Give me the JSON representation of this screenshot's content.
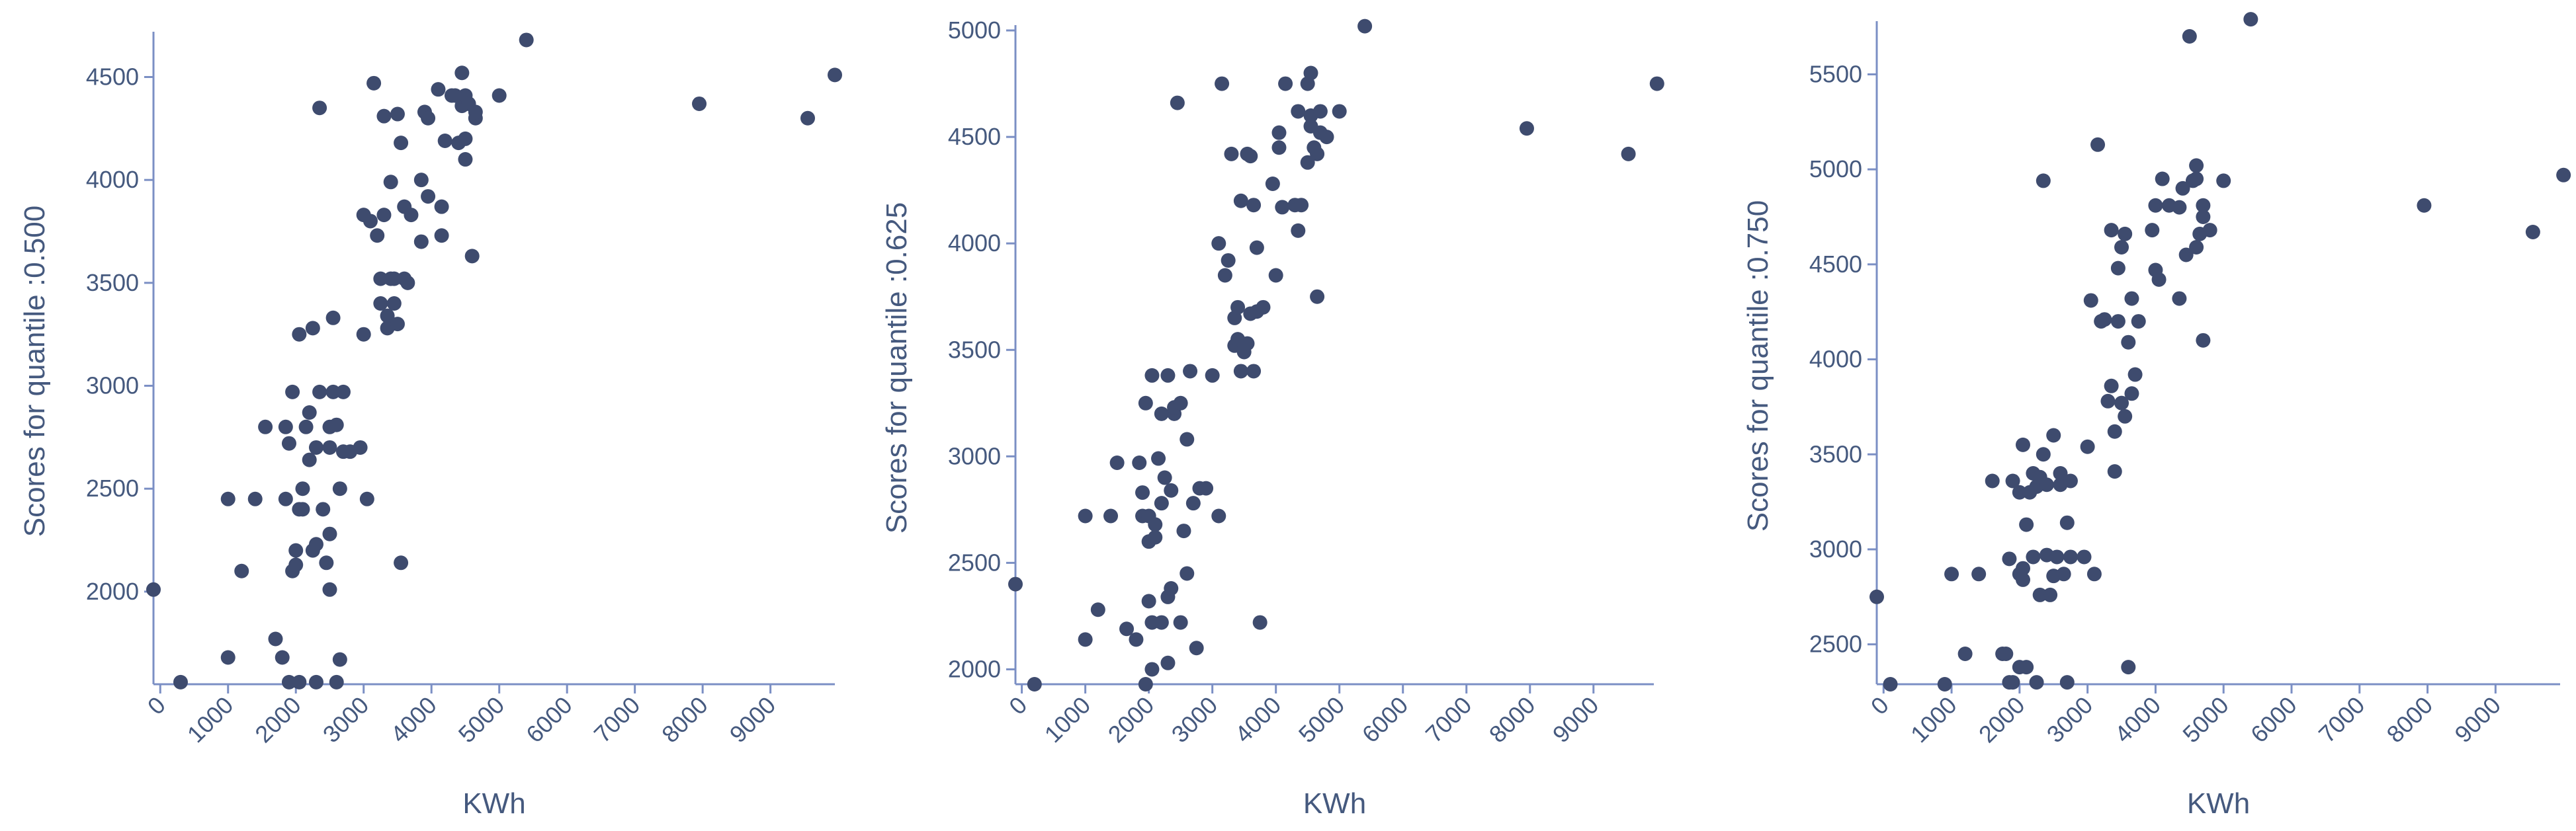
{
  "chart_data": [
    {
      "type": "scatter",
      "xlabel": "KWh",
      "ylabel": "Scores for quantile :0.500",
      "xlim": [
        -100,
        9950
      ],
      "ylim": [
        1550,
        4720
      ],
      "xticks": [
        0,
        1000,
        2000,
        3000,
        4000,
        5000,
        6000,
        7000,
        8000,
        9000
      ],
      "yticks": [
        2000,
        2500,
        3000,
        3500,
        4000,
        4500
      ],
      "points": [
        [
          -100,
          2010
        ],
        [
          300,
          1560
        ],
        [
          1000,
          1680
        ],
        [
          1000,
          2450
        ],
        [
          1200,
          2100
        ],
        [
          1400,
          2450
        ],
        [
          1550,
          2800
        ],
        [
          1700,
          1770
        ],
        [
          1800,
          1680
        ],
        [
          1850,
          2450
        ],
        [
          1850,
          2800
        ],
        [
          1900,
          2720
        ],
        [
          1900,
          1560
        ],
        [
          1950,
          2100
        ],
        [
          1950,
          2970
        ],
        [
          2000,
          2130
        ],
        [
          2000,
          2200
        ],
        [
          2050,
          2400
        ],
        [
          2050,
          1560
        ],
        [
          2050,
          3250
        ],
        [
          2100,
          2400
        ],
        [
          2100,
          2500
        ],
        [
          2150,
          2800
        ],
        [
          2200,
          2640
        ],
        [
          2200,
          2870
        ],
        [
          2250,
          3280
        ],
        [
          2250,
          2200
        ],
        [
          2300,
          2230
        ],
        [
          2300,
          1560
        ],
        [
          2300,
          2700
        ],
        [
          2350,
          2970
        ],
        [
          2350,
          4350
        ],
        [
          2400,
          2400
        ],
        [
          2450,
          2140
        ],
        [
          2500,
          2700
        ],
        [
          2500,
          2800
        ],
        [
          2500,
          2280
        ],
        [
          2500,
          2010
        ],
        [
          2550,
          2970
        ],
        [
          2550,
          3330
        ],
        [
          2600,
          2810
        ],
        [
          2600,
          1560
        ],
        [
          2650,
          1670
        ],
        [
          2650,
          2500
        ],
        [
          2700,
          2970
        ],
        [
          2700,
          2680
        ],
        [
          2800,
          2680
        ],
        [
          2950,
          2700
        ],
        [
          3000,
          3250
        ],
        [
          3000,
          3830
        ],
        [
          3050,
          2450
        ],
        [
          3100,
          3800
        ],
        [
          3150,
          4470
        ],
        [
          3200,
          3730
        ],
        [
          3250,
          3400
        ],
        [
          3250,
          3520
        ],
        [
          3300,
          4310
        ],
        [
          3300,
          3830
        ],
        [
          3350,
          3280
        ],
        [
          3350,
          3340
        ],
        [
          3400,
          3520
        ],
        [
          3400,
          3990
        ],
        [
          3450,
          3400
        ],
        [
          3450,
          3520
        ],
        [
          3500,
          3300
        ],
        [
          3500,
          4320
        ],
        [
          3550,
          4180
        ],
        [
          3550,
          2140
        ],
        [
          3600,
          3520
        ],
        [
          3600,
          3870
        ],
        [
          3650,
          3500
        ],
        [
          3700,
          3830
        ],
        [
          3850,
          3700
        ],
        [
          3850,
          4000
        ],
        [
          3900,
          4330
        ],
        [
          3950,
          4300
        ],
        [
          3950,
          3920
        ],
        [
          4100,
          4440
        ],
        [
          4150,
          3730
        ],
        [
          4150,
          3870
        ],
        [
          4200,
          4190
        ],
        [
          4300,
          4410
        ],
        [
          4350,
          4410
        ],
        [
          4400,
          4180
        ],
        [
          4450,
          4520
        ],
        [
          4450,
          4360
        ],
        [
          4500,
          4100
        ],
        [
          4500,
          4200
        ],
        [
          4500,
          4410
        ],
        [
          4550,
          4370
        ],
        [
          4600,
          3630
        ],
        [
          4650,
          4300
        ],
        [
          4650,
          4330
        ],
        [
          5000,
          4410
        ],
        [
          5400,
          4680
        ],
        [
          7950,
          4370
        ],
        [
          9550,
          4300
        ],
        [
          9950,
          4510
        ]
      ]
    },
    {
      "type": "scatter",
      "xlabel": "KWh",
      "ylabel": "Scores for quantile :0.625",
      "xlim": [
        -100,
        9950
      ],
      "ylim": [
        1930,
        5025
      ],
      "xticks": [
        0,
        1000,
        2000,
        3000,
        4000,
        5000,
        6000,
        7000,
        8000,
        9000
      ],
      "yticks": [
        2000,
        2500,
        3000,
        3500,
        4000,
        4500,
        5000
      ],
      "points": [
        [
          -100,
          2400
        ],
        [
          200,
          1930
        ],
        [
          1000,
          2140
        ],
        [
          1000,
          2720
        ],
        [
          1200,
          2280
        ],
        [
          1400,
          2720
        ],
        [
          1500,
          2970
        ],
        [
          1650,
          2190
        ],
        [
          1800,
          2140
        ],
        [
          1850,
          2970
        ],
        [
          1900,
          2830
        ],
        [
          1900,
          2720
        ],
        [
          1950,
          1930
        ],
        [
          1950,
          3250
        ],
        [
          2000,
          2600
        ],
        [
          2000,
          2720
        ],
        [
          2000,
          2320
        ],
        [
          2050,
          2000
        ],
        [
          2050,
          2220
        ],
        [
          2050,
          3380
        ],
        [
          2100,
          2680
        ],
        [
          2100,
          2620
        ],
        [
          2150,
          2990
        ],
        [
          2200,
          2780
        ],
        [
          2200,
          2220
        ],
        [
          2200,
          3200
        ],
        [
          2250,
          2900
        ],
        [
          2300,
          2340
        ],
        [
          2300,
          3380
        ],
        [
          2300,
          2030
        ],
        [
          2350,
          2380
        ],
        [
          2350,
          2840
        ],
        [
          2400,
          3200
        ],
        [
          2400,
          3230
        ],
        [
          2450,
          4660
        ],
        [
          2500,
          2220
        ],
        [
          2500,
          3250
        ],
        [
          2550,
          2650
        ],
        [
          2600,
          2450
        ],
        [
          2600,
          3080
        ],
        [
          2650,
          3400
        ],
        [
          2700,
          2780
        ],
        [
          2750,
          2100
        ],
        [
          2800,
          2850
        ],
        [
          2900,
          2850
        ],
        [
          3000,
          3380
        ],
        [
          3100,
          2720
        ],
        [
          3100,
          4000
        ],
        [
          3150,
          4750
        ],
        [
          3200,
          3850
        ],
        [
          3250,
          3920
        ],
        [
          3300,
          4420
        ],
        [
          3350,
          3650
        ],
        [
          3350,
          3520
        ],
        [
          3400,
          3550
        ],
        [
          3400,
          3700
        ],
        [
          3450,
          4200
        ],
        [
          3450,
          3400
        ],
        [
          3500,
          3490
        ],
        [
          3550,
          4420
        ],
        [
          3550,
          3530
        ],
        [
          3600,
          4410
        ],
        [
          3600,
          3670
        ],
        [
          3650,
          3400
        ],
        [
          3650,
          4180
        ],
        [
          3700,
          3680
        ],
        [
          3700,
          3980
        ],
        [
          3750,
          2220
        ],
        [
          3800,
          3700
        ],
        [
          3950,
          4280
        ],
        [
          4000,
          3850
        ],
        [
          4050,
          4450
        ],
        [
          4050,
          4520
        ],
        [
          4100,
          4170
        ],
        [
          4150,
          4750
        ],
        [
          4300,
          4180
        ],
        [
          4350,
          4060
        ],
        [
          4350,
          4620
        ],
        [
          4400,
          4180
        ],
        [
          4500,
          4380
        ],
        [
          4500,
          4750
        ],
        [
          4550,
          4800
        ],
        [
          4550,
          4550
        ],
        [
          4550,
          4600
        ],
        [
          4600,
          4450
        ],
        [
          4650,
          4420
        ],
        [
          4650,
          3750
        ],
        [
          4700,
          4520
        ],
        [
          4700,
          4620
        ],
        [
          4800,
          4500
        ],
        [
          5000,
          4620
        ],
        [
          5400,
          5020
        ],
        [
          7950,
          4540
        ],
        [
          9550,
          4420
        ],
        [
          10000,
          4750
        ]
      ]
    },
    {
      "type": "scatter",
      "xlabel": "KWh",
      "ylabel": "Scores for quantile :0.750",
      "xlim": [
        -100,
        9950
      ],
      "ylim": [
        2290,
        5780
      ],
      "xticks": [
        0,
        1000,
        2000,
        3000,
        4000,
        5000,
        6000,
        7000,
        8000,
        9000
      ],
      "yticks": [
        2500,
        3000,
        3500,
        4000,
        4500,
        5000,
        5500
      ],
      "points": [
        [
          -100,
          2750
        ],
        [
          100,
          2290
        ],
        [
          900,
          2290
        ],
        [
          1000,
          2870
        ],
        [
          1200,
          2450
        ],
        [
          1400,
          2870
        ],
        [
          1600,
          3360
        ],
        [
          1750,
          2450
        ],
        [
          1800,
          2450
        ],
        [
          1850,
          2300
        ],
        [
          1850,
          2950
        ],
        [
          1900,
          3360
        ],
        [
          1900,
          2300
        ],
        [
          2000,
          2870
        ],
        [
          2000,
          3300
        ],
        [
          2000,
          2380
        ],
        [
          2050,
          2900
        ],
        [
          2050,
          3550
        ],
        [
          2050,
          2840
        ],
        [
          2100,
          3130
        ],
        [
          2100,
          2380
        ],
        [
          2150,
          3300
        ],
        [
          2200,
          2960
        ],
        [
          2200,
          3400
        ],
        [
          2250,
          3330
        ],
        [
          2250,
          2300
        ],
        [
          2300,
          2760
        ],
        [
          2300,
          3380
        ],
        [
          2350,
          3500
        ],
        [
          2350,
          4940
        ],
        [
          2400,
          2970
        ],
        [
          2400,
          3340
        ],
        [
          2450,
          2760
        ],
        [
          2500,
          3600
        ],
        [
          2500,
          2860
        ],
        [
          2550,
          2960
        ],
        [
          2600,
          3340
        ],
        [
          2600,
          3400
        ],
        [
          2650,
          2870
        ],
        [
          2700,
          2300
        ],
        [
          2700,
          3140
        ],
        [
          2750,
          3360
        ],
        [
          2750,
          2960
        ],
        [
          2950,
          2960
        ],
        [
          3000,
          3540
        ],
        [
          3050,
          4310
        ],
        [
          3100,
          2870
        ],
        [
          3150,
          5130
        ],
        [
          3200,
          4200
        ],
        [
          3250,
          4210
        ],
        [
          3300,
          3780
        ],
        [
          3350,
          4680
        ],
        [
          3350,
          3860
        ],
        [
          3400,
          3620
        ],
        [
          3400,
          3410
        ],
        [
          3450,
          4480
        ],
        [
          3450,
          4200
        ],
        [
          3500,
          4590
        ],
        [
          3500,
          3770
        ],
        [
          3550,
          3700
        ],
        [
          3550,
          4660
        ],
        [
          3600,
          4090
        ],
        [
          3600,
          2380
        ],
        [
          3650,
          4320
        ],
        [
          3650,
          3820
        ],
        [
          3700,
          3920
        ],
        [
          3750,
          4200
        ],
        [
          3950,
          4680
        ],
        [
          4000,
          4470
        ],
        [
          4000,
          4810
        ],
        [
          4050,
          4420
        ],
        [
          4100,
          4950
        ],
        [
          4200,
          4810
        ],
        [
          4350,
          4320
        ],
        [
          4350,
          4800
        ],
        [
          4400,
          4900
        ],
        [
          4450,
          4550
        ],
        [
          4500,
          5700
        ],
        [
          4550,
          4940
        ],
        [
          4600,
          4590
        ],
        [
          4600,
          5020
        ],
        [
          4600,
          4950
        ],
        [
          4650,
          4660
        ],
        [
          4700,
          4100
        ],
        [
          4700,
          4750
        ],
        [
          4700,
          4810
        ],
        [
          4800,
          4680
        ],
        [
          5000,
          4940
        ],
        [
          5400,
          5790
        ],
        [
          7950,
          4810
        ],
        [
          9550,
          4670
        ],
        [
          10000,
          4970
        ]
      ]
    }
  ]
}
